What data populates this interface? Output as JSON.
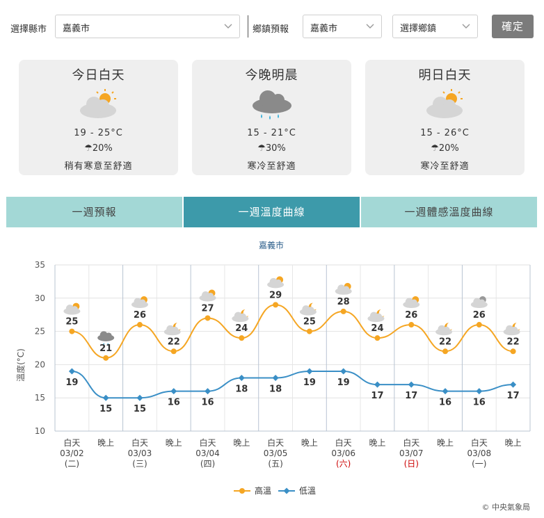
{
  "selector": {
    "county_label": "選擇縣市",
    "county_value": "嘉義市",
    "township_label": "鄉鎮預報",
    "township_county_value": "嘉義市",
    "township_value": "選擇鄉鎮",
    "confirm_label": "確定"
  },
  "cards": [
    {
      "title": "今日白天",
      "icon": "partly-cloudy-icon",
      "temp": "19 - 25°C",
      "rain": "20%",
      "feel": "稍有寒意至舒適"
    },
    {
      "title": "今晚明晨",
      "icon": "rain-cloud-icon",
      "temp": "15 - 21°C",
      "rain": "30%",
      "feel": "寒冷至舒適"
    },
    {
      "title": "明日白天",
      "icon": "partly-cloudy-icon",
      "temp": "15 - 26°C",
      "rain": "20%",
      "feel": "寒冷至舒適"
    }
  ],
  "tabs": [
    {
      "label": "一週預報",
      "active": false
    },
    {
      "label": "一週溫度曲線",
      "active": true
    },
    {
      "label": "一週體感溫度曲線",
      "active": false
    }
  ],
  "chart_data": {
    "type": "line",
    "title": "嘉義市",
    "ylabel": "溫度(°C)",
    "xlabel": "",
    "ylim": [
      10,
      35
    ],
    "yticks": [
      10,
      15,
      20,
      25,
      30,
      35
    ],
    "grid": true,
    "legend_position": "bottom-center",
    "categories": [
      {
        "period": "白天",
        "date": "03/02",
        "weekday": "(二)",
        "holiday": false
      },
      {
        "period": "晚上",
        "date": "",
        "weekday": "",
        "holiday": false
      },
      {
        "period": "白天",
        "date": "03/03",
        "weekday": "(三)",
        "holiday": false
      },
      {
        "period": "晚上",
        "date": "",
        "weekday": "",
        "holiday": false
      },
      {
        "period": "白天",
        "date": "03/04",
        "weekday": "(四)",
        "holiday": false
      },
      {
        "period": "晚上",
        "date": "",
        "weekday": "",
        "holiday": false
      },
      {
        "period": "白天",
        "date": "03/05",
        "weekday": "(五)",
        "holiday": false
      },
      {
        "period": "晚上",
        "date": "",
        "weekday": "",
        "holiday": false
      },
      {
        "period": "白天",
        "date": "03/06",
        "weekday": "(六)",
        "holiday": true
      },
      {
        "period": "晚上",
        "date": "",
        "weekday": "",
        "holiday": false
      },
      {
        "period": "白天",
        "date": "03/07",
        "weekday": "(日)",
        "holiday": true
      },
      {
        "period": "晚上",
        "date": "",
        "weekday": "",
        "holiday": false
      },
      {
        "period": "白天",
        "date": "03/08",
        "weekday": "(一)",
        "holiday": false
      },
      {
        "period": "晚上",
        "date": "",
        "weekday": "",
        "holiday": false
      }
    ],
    "icons": [
      "partly-cloudy-icon",
      "rain-cloud-icon",
      "partly-cloudy-icon",
      "cloudy-night-icon",
      "partly-cloudy-icon",
      "cloudy-night-icon",
      "partly-cloudy-icon",
      "cloudy-night-icon",
      "partly-cloudy-icon",
      "cloudy-night-icon",
      "partly-cloudy-icon",
      "cloudy-night-icon",
      "mostly-cloudy-icon",
      "cloudy-night-icon"
    ],
    "series": [
      {
        "name": "高溫",
        "color": "#f5a623",
        "values": [
          25,
          21,
          26,
          22,
          27,
          24,
          29,
          25,
          28,
          24,
          26,
          22,
          26,
          22
        ]
      },
      {
        "name": "低溫",
        "color": "#3a8fc6",
        "values": [
          19,
          15,
          15,
          16,
          16,
          18,
          18,
          19,
          19,
          17,
          17,
          16,
          16,
          17
        ]
      }
    ]
  },
  "copyright": "© 中央氣象局"
}
